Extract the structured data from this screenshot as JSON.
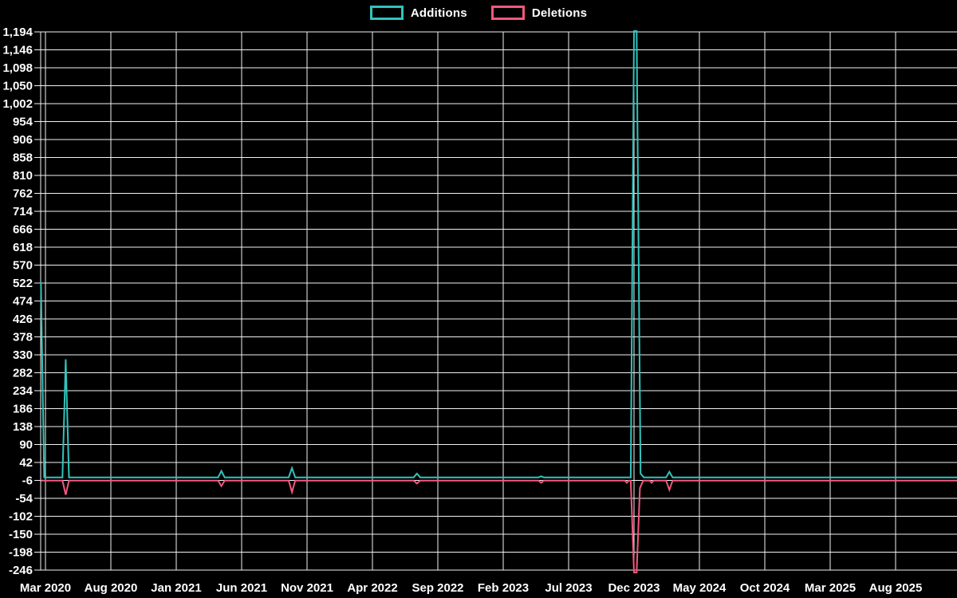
{
  "colors": {
    "background": "#000000",
    "grid": "#f2f2f2",
    "text": "#ffffff",
    "additions": "#31c3bc",
    "deletions": "#f4587e"
  },
  "legend": {
    "items": [
      {
        "label": "Additions",
        "color": "#31c3bc"
      },
      {
        "label": "Deletions",
        "color": "#f4587e"
      }
    ]
  },
  "chart_data": {
    "type": "line",
    "title": "",
    "xlabel": "",
    "ylabel": "",
    "grid": true,
    "legend_position": "top-center",
    "x_axis": {
      "unit": "months since Mar 2020",
      "range": [
        -0.45,
        69.7
      ],
      "tick_month_offsets": [
        0,
        5,
        10,
        15,
        20,
        25,
        30,
        35,
        40,
        45,
        50,
        55,
        60,
        65
      ],
      "tick_labels": [
        "Mar 2020",
        "Aug 2020",
        "Jan 2021",
        "Jun 2021",
        "Nov 2021",
        "Apr 2022",
        "Sep 2022",
        "Feb 2023",
        "Jul 2023",
        "Dec 2023",
        "May 2024",
        "Oct 2024",
        "Mar 2025",
        "Aug 2025"
      ]
    },
    "y_axis": {
      "range": [
        -246,
        1194
      ],
      "tick_step": 48,
      "tick_values": [
        1194,
        1146,
        1098,
        1050,
        1002,
        954,
        906,
        858,
        810,
        762,
        714,
        666,
        618,
        570,
        522,
        474,
        426,
        378,
        330,
        282,
        234,
        186,
        138,
        90,
        42,
        -6,
        -54,
        -102,
        -150,
        -198,
        -246
      ],
      "tick_labels": [
        "1,194",
        "1,146",
        "1,098",
        "1,050",
        "1,002",
        "954",
        "906",
        "858",
        "810",
        "762",
        "714",
        "666",
        "618",
        "570",
        "522",
        "474",
        "426",
        "378",
        "330",
        "282",
        "234",
        "186",
        "138",
        "90",
        "42",
        "-6",
        "-54",
        "-102",
        "-150",
        "-198",
        "-246"
      ]
    },
    "series": [
      {
        "name": "Additions",
        "color": "#31c3bc",
        "points": [
          [
            -0.35,
            522
          ],
          [
            -0.1,
            0
          ],
          [
            1.3,
            0
          ],
          [
            1.55,
            316
          ],
          [
            1.8,
            0
          ],
          [
            13.2,
            0
          ],
          [
            13.45,
            17
          ],
          [
            13.7,
            0
          ],
          [
            18.6,
            0
          ],
          [
            18.85,
            25
          ],
          [
            19.1,
            0
          ],
          [
            28.15,
            0
          ],
          [
            28.4,
            10
          ],
          [
            28.65,
            0
          ],
          [
            37.7,
            0
          ],
          [
            37.9,
            3
          ],
          [
            38.1,
            0
          ],
          [
            44.75,
            0
          ],
          [
            45.0,
            1194
          ],
          [
            45.2,
            1194
          ],
          [
            45.5,
            10
          ],
          [
            45.75,
            0
          ],
          [
            47.45,
            0
          ],
          [
            47.7,
            15
          ],
          [
            47.95,
            0
          ],
          [
            69.7,
            0
          ]
        ]
      },
      {
        "name": "Deletions",
        "color": "#f4587e",
        "points": [
          [
            -0.35,
            0
          ],
          [
            1.3,
            0
          ],
          [
            1.55,
            -38
          ],
          [
            1.8,
            0
          ],
          [
            13.2,
            0
          ],
          [
            13.45,
            -15
          ],
          [
            13.7,
            0
          ],
          [
            18.6,
            0
          ],
          [
            18.85,
            -31
          ],
          [
            19.1,
            0
          ],
          [
            28.15,
            0
          ],
          [
            28.4,
            -8
          ],
          [
            28.65,
            0
          ],
          [
            37.7,
            0
          ],
          [
            37.9,
            -6
          ],
          [
            38.1,
            0
          ],
          [
            44.3,
            0
          ],
          [
            44.45,
            -6
          ],
          [
            44.6,
            0
          ],
          [
            44.75,
            0
          ],
          [
            45.0,
            -246
          ],
          [
            45.2,
            -246
          ],
          [
            45.45,
            -20
          ],
          [
            45.7,
            0
          ],
          [
            46.2,
            0
          ],
          [
            46.35,
            -6
          ],
          [
            46.5,
            0
          ],
          [
            47.45,
            0
          ],
          [
            47.7,
            -25
          ],
          [
            47.95,
            0
          ],
          [
            69.7,
            0
          ]
        ]
      }
    ],
    "annotations": {
      "peak_additions": 1194,
      "peak_deletions": -246,
      "peak_date_label": "Dec 2023"
    }
  }
}
